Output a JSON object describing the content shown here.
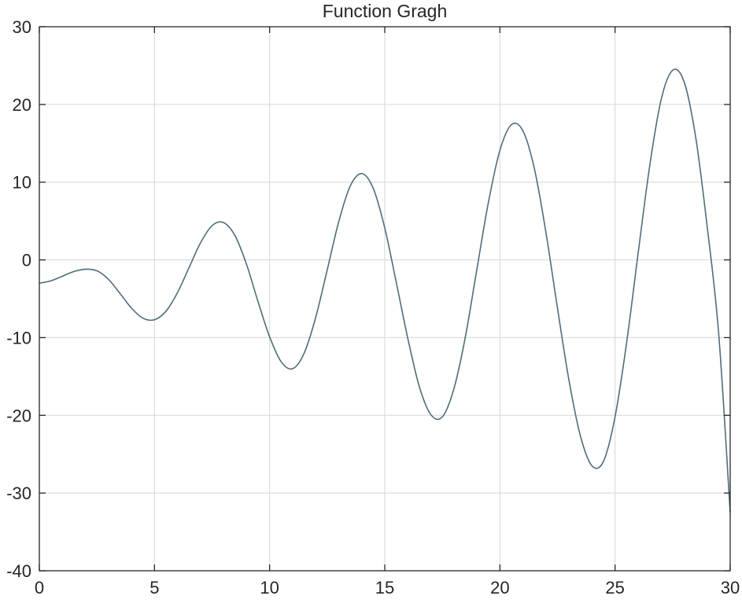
{
  "chart_data": {
    "type": "line",
    "title": "Function Gragh",
    "xlabel": "",
    "ylabel": "",
    "xlim": [
      0,
      30
    ],
    "ylim": [
      -40,
      30
    ],
    "xticks": [
      0,
      5,
      10,
      15,
      20,
      25,
      30
    ],
    "yticks": [
      -40,
      -30,
      -20,
      -10,
      0,
      10,
      20,
      30
    ],
    "grid": true,
    "line_color": "#4f6d7a",
    "series": [
      {
        "x": [
          0,
          0.5,
          1,
          1.5,
          2,
          2.5,
          3,
          3.5,
          4,
          4.5,
          5,
          5.5,
          6,
          6.5,
          7,
          7.5,
          8,
          8.5,
          9,
          9.5,
          10,
          10.5,
          11,
          11.5,
          12,
          12.5,
          13,
          13.5,
          14,
          14.5,
          15,
          15.5,
          16,
          16.5,
          17,
          17.5,
          18,
          18.5,
          19,
          19.5,
          20,
          20.5,
          21,
          21.5,
          22,
          22.5,
          23,
          23.5,
          24,
          24.5,
          25,
          25.5,
          26,
          26.5,
          27,
          27.5,
          28,
          28.5,
          29,
          29.5,
          30
        ],
        "y": [
          -3.0,
          -2.7,
          -2.1,
          -1.5,
          -1.2,
          -1.4,
          -2.5,
          -4.3,
          -6.2,
          -7.5,
          -7.7,
          -6.6,
          -4.2,
          -1.0,
          2.2,
          4.4,
          4.8,
          3.1,
          -0.6,
          -5.4,
          -9.9,
          -13.1,
          -14.0,
          -12.0,
          -7.4,
          -1.3,
          4.9,
          9.5,
          11.1,
          9.2,
          4.1,
          -2.9,
          -10.1,
          -16.3,
          -19.9,
          -20.2,
          -16.6,
          -9.9,
          -1.2,
          7.4,
          14.1,
          17.4,
          16.6,
          11.7,
          3.5,
          -6.2,
          -15.5,
          -22.7,
          -26.5,
          -25.9,
          -20.2,
          -10.7,
          0.8,
          12.0,
          20.6,
          24.4,
          22.9,
          15.8,
          4.3,
          -9.5,
          -32.5
        ]
      }
    ]
  }
}
